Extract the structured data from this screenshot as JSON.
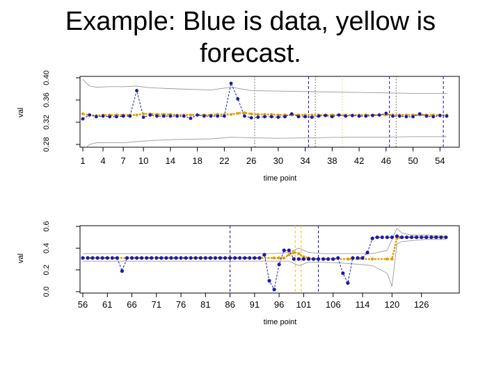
{
  "slide": {
    "title": "Example: Blue is data, yellow is forecast."
  },
  "colors": {
    "data": "#1a1aa8",
    "forecast": "#e0a000",
    "bounds": "#999999",
    "vline_blue": "#2020c0",
    "vline_yellow": "#f0d040",
    "vline_dark": "#505050"
  },
  "chart_data": [
    {
      "type": "line",
      "xlabel": "time point",
      "ylabel": "val",
      "xlim": [
        1,
        55
      ],
      "ylim": [
        0.28,
        0.4
      ],
      "x_ticks": [
        1,
        4,
        7,
        10,
        14,
        18,
        22,
        26,
        30,
        34,
        38,
        42,
        46,
        50,
        54
      ],
      "y_ticks": [
        0.28,
        0.32,
        0.36,
        0.4
      ],
      "series": [
        {
          "name": "data",
          "x": [
            1,
            2,
            3,
            4,
            5,
            6,
            7,
            8,
            9,
            10,
            11,
            12,
            13,
            14,
            15,
            16,
            17,
            18,
            19,
            20,
            21,
            22,
            23,
            24,
            25,
            26,
            27,
            28,
            29,
            30,
            31,
            32,
            33,
            34,
            35,
            36,
            37,
            38,
            39,
            40,
            41,
            42,
            43,
            44,
            45,
            46,
            47,
            48,
            49,
            50,
            51,
            52,
            53,
            54,
            55
          ],
          "values": [
            0.326,
            0.333,
            0.33,
            0.331,
            0.33,
            0.33,
            0.331,
            0.331,
            0.377,
            0.329,
            0.333,
            0.331,
            0.331,
            0.331,
            0.331,
            0.331,
            0.327,
            0.333,
            0.331,
            0.331,
            0.331,
            0.331,
            0.39,
            0.362,
            0.331,
            0.328,
            0.329,
            0.33,
            0.33,
            0.329,
            0.33,
            0.335,
            0.33,
            0.33,
            0.329,
            0.331,
            0.332,
            0.33,
            0.333,
            0.331,
            0.332,
            0.331,
            0.331,
            0.332,
            0.333,
            0.336,
            0.331,
            0.331,
            0.33,
            0.33,
            0.335,
            0.331,
            0.33,
            0.332,
            0.331
          ]
        },
        {
          "name": "forecast",
          "x": [
            1,
            2,
            3,
            4,
            5,
            6,
            7,
            8,
            9,
            10,
            11,
            12,
            13,
            14,
            15,
            16,
            17,
            18,
            19,
            20,
            21,
            22,
            23,
            24,
            25,
            26,
            27,
            28,
            29,
            30,
            31,
            32,
            33,
            34,
            35,
            36,
            37,
            38,
            39,
            40,
            41,
            42,
            43,
            44,
            45,
            46,
            47,
            48,
            49,
            50,
            51,
            52,
            53,
            54,
            55
          ],
          "values": [
            0.335,
            0.333,
            0.332,
            0.333,
            0.333,
            0.333,
            0.333,
            0.333,
            0.333,
            0.335,
            0.335,
            0.334,
            0.334,
            0.334,
            0.333,
            0.333,
            0.333,
            0.333,
            0.333,
            0.333,
            0.334,
            0.334,
            0.334,
            0.336,
            0.337,
            0.335,
            0.334,
            0.334,
            0.334,
            0.333,
            0.333,
            0.333,
            0.333,
            0.333,
            0.333,
            0.333,
            0.333,
            0.333,
            0.333,
            0.333,
            0.333,
            0.333,
            0.333,
            0.333,
            0.333,
            0.333,
            0.333,
            0.333,
            0.333,
            0.333,
            0.333,
            0.333,
            0.333,
            0.333,
            0.333
          ]
        },
        {
          "name": "upper",
          "x": [
            1,
            2,
            3,
            5,
            7,
            9,
            11,
            15,
            20,
            23,
            26,
            30,
            35,
            40,
            45,
            50,
            55
          ],
          "values": [
            0.397,
            0.385,
            0.383,
            0.384,
            0.384,
            0.385,
            0.382,
            0.38,
            0.378,
            0.383,
            0.377,
            0.376,
            0.375,
            0.374,
            0.373,
            0.372,
            0.372
          ]
        },
        {
          "name": "lower",
          "x": [
            1,
            2,
            3,
            5,
            7,
            9,
            11,
            15,
            20,
            23,
            26,
            30,
            35,
            40,
            45,
            50,
            55
          ],
          "values": [
            0.27,
            0.28,
            0.283,
            0.283,
            0.283,
            0.285,
            0.287,
            0.289,
            0.29,
            0.293,
            0.292,
            0.291,
            0.292,
            0.293,
            0.293,
            0.294,
            0.294
          ]
        }
      ],
      "vlines": [
        {
          "x": 26.5,
          "style": "dark-dotted"
        },
        {
          "x": 34.5,
          "style": "blue-dashed"
        },
        {
          "x": 35.5,
          "style": "dark-dotted"
        },
        {
          "x": 39.5,
          "style": "yellow-dotted"
        },
        {
          "x": 46.5,
          "style": "blue-dashed"
        },
        {
          "x": 47.5,
          "style": "dark-dotted"
        },
        {
          "x": 54.5,
          "style": "blue-dashed"
        }
      ]
    },
    {
      "type": "line",
      "xlabel": "time point",
      "ylabel": "val",
      "xlim": [
        56,
        131
      ],
      "ylim": [
        0.0,
        0.6
      ],
      "x_ticks": [
        56,
        61,
        66,
        71,
        76,
        81,
        86,
        91,
        96,
        101,
        106,
        114,
        120,
        126
      ],
      "x_tick_pos": [
        56,
        61,
        66,
        71,
        76,
        81,
        86,
        91,
        96,
        101,
        107,
        113,
        119,
        125
      ],
      "y_ticks": [
        0.0,
        0.2,
        0.4,
        0.6
      ],
      "series": [
        {
          "name": "data",
          "x": [
            56,
            57,
            58,
            59,
            60,
            61,
            62,
            63,
            64,
            65,
            66,
            67,
            68,
            69,
            70,
            71,
            72,
            73,
            74,
            75,
            76,
            77,
            78,
            79,
            80,
            81,
            82,
            83,
            84,
            85,
            86,
            87,
            88,
            89,
            90,
            91,
            92,
            93,
            94,
            95,
            96,
            97,
            98,
            99,
            100,
            101,
            102,
            103,
            104,
            105,
            106,
            107,
            108,
            109,
            110,
            111,
            112,
            113,
            114,
            115,
            116,
            117,
            118,
            119,
            120,
            121,
            122,
            123,
            124,
            125,
            126,
            127,
            128,
            129,
            130
          ],
          "values": [
            0.31,
            0.31,
            0.31,
            0.31,
            0.31,
            0.31,
            0.31,
            0.31,
            0.19,
            0.31,
            0.31,
            0.31,
            0.31,
            0.31,
            0.31,
            0.31,
            0.31,
            0.31,
            0.31,
            0.31,
            0.31,
            0.31,
            0.31,
            0.31,
            0.31,
            0.31,
            0.31,
            0.31,
            0.31,
            0.31,
            0.31,
            0.31,
            0.31,
            0.31,
            0.31,
            0.31,
            0.31,
            0.34,
            0.1,
            0.02,
            0.25,
            0.38,
            0.38,
            0.3,
            0.3,
            0.3,
            0.3,
            0.3,
            0.3,
            0.3,
            0.3,
            0.3,
            0.31,
            0.17,
            0.08,
            0.31,
            0.31,
            0.31,
            0.36,
            0.49,
            0.5,
            0.5,
            0.5,
            0.5,
            0.51,
            0.5,
            0.5,
            0.5,
            0.5,
            0.5,
            0.5,
            0.5,
            0.5,
            0.5,
            0.5
          ]
        },
        {
          "name": "forecast",
          "x": [
            56,
            60,
            65,
            70,
            75,
            80,
            85,
            90,
            95,
            96,
            97,
            98,
            99,
            100,
            101,
            102,
            103,
            105,
            110,
            115,
            118,
            119,
            120,
            121,
            122,
            125,
            130
          ],
          "values": [
            0.31,
            0.31,
            0.31,
            0.31,
            0.31,
            0.31,
            0.31,
            0.31,
            0.31,
            0.31,
            0.31,
            0.34,
            0.36,
            0.35,
            0.32,
            0.31,
            0.3,
            0.3,
            0.3,
            0.3,
            0.3,
            0.3,
            0.49,
            0.5,
            0.5,
            0.5,
            0.5
          ]
        },
        {
          "name": "upper",
          "x": [
            56,
            65,
            75,
            85,
            95,
            98,
            100,
            102,
            105,
            110,
            115,
            118,
            119,
            120,
            121,
            123,
            126,
            130
          ],
          "values": [
            0.35,
            0.35,
            0.35,
            0.35,
            0.35,
            0.36,
            0.4,
            0.36,
            0.35,
            0.35,
            0.35,
            0.38,
            0.48,
            0.58,
            0.54,
            0.52,
            0.52,
            0.51
          ]
        },
        {
          "name": "lower",
          "x": [
            56,
            65,
            75,
            85,
            95,
            98,
            100,
            102,
            105,
            110,
            115,
            118,
            119,
            120,
            121,
            123,
            126,
            130
          ],
          "values": [
            0.28,
            0.28,
            0.28,
            0.28,
            0.28,
            0.28,
            0.24,
            0.27,
            0.27,
            0.26,
            0.24,
            0.17,
            0.05,
            0.44,
            0.46,
            0.47,
            0.48,
            0.48
          ]
        }
      ],
      "vlines": [
        {
          "x": 86,
          "style": "blue-dashed"
        },
        {
          "x": 99.3,
          "style": "yellow-dashed"
        },
        {
          "x": 100.5,
          "style": "yellow-dashed"
        },
        {
          "x": 104,
          "style": "blue-dashed"
        }
      ]
    }
  ]
}
